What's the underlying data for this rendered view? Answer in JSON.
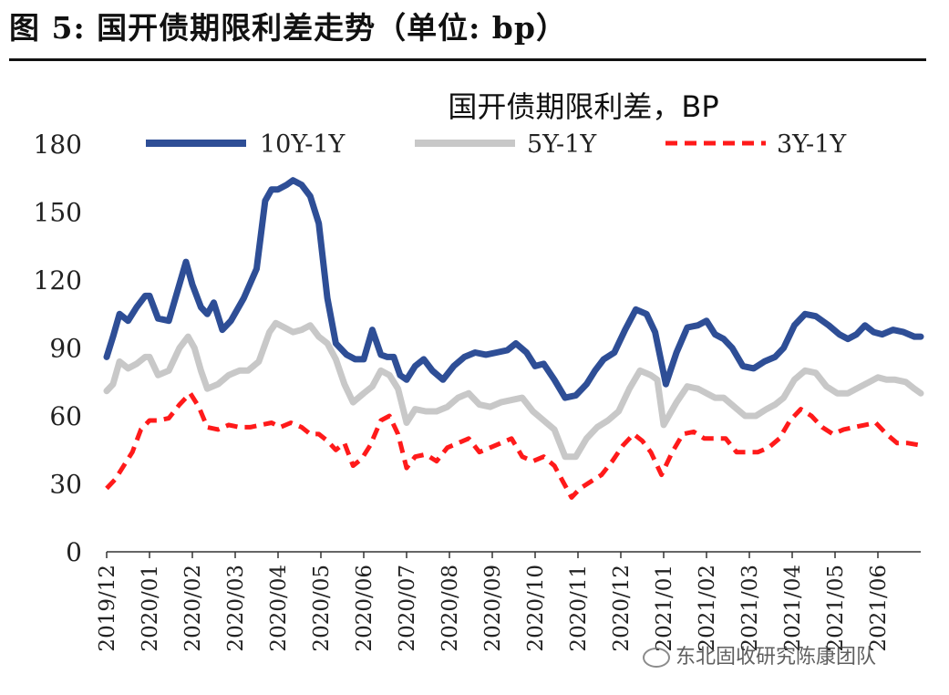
{
  "figure": {
    "title": "图 5: 国开债期限利差走势（单位: bp）",
    "watermark": "东北固收研究陈康团队"
  },
  "chart_data": {
    "type": "line",
    "title": "国开债期限利差，BP",
    "xlabel": "",
    "ylabel": "",
    "ylim": [
      0,
      180
    ],
    "yticks": [
      "0",
      "30",
      "60",
      "90",
      "120",
      "150",
      "180"
    ],
    "xticks": [
      "2019/12",
      "2020/01",
      "2020/02",
      "2020/03",
      "2020/04",
      "2020/05",
      "2020/06",
      "2020/07",
      "2020/08",
      "2020/09",
      "2020/10",
      "2020/11",
      "2020/12",
      "2021/01",
      "2021/02",
      "2021/03",
      "2021/04",
      "2021/05",
      "2021/06"
    ],
    "x_start": "2019/12",
    "x_end": "2021/06 late",
    "legend_position": "top",
    "series": [
      {
        "name": "10Y-1Y",
        "color": "#2e4e96",
        "style": "solid",
        "points": [
          [
            0,
            86
          ],
          [
            0.15,
            95
          ],
          [
            0.3,
            105
          ],
          [
            0.5,
            102
          ],
          [
            0.7,
            108
          ],
          [
            0.9,
            113
          ],
          [
            1.0,
            113
          ],
          [
            1.2,
            103
          ],
          [
            1.45,
            102
          ],
          [
            1.65,
            115
          ],
          [
            1.85,
            128
          ],
          [
            2.0,
            118
          ],
          [
            2.2,
            108
          ],
          [
            2.35,
            105
          ],
          [
            2.5,
            110
          ],
          [
            2.7,
            98
          ],
          [
            2.9,
            102
          ],
          [
            3.2,
            112
          ],
          [
            3.5,
            125
          ],
          [
            3.7,
            155
          ],
          [
            3.85,
            160
          ],
          [
            4.0,
            160
          ],
          [
            4.2,
            162
          ],
          [
            4.35,
            164
          ],
          [
            4.55,
            162
          ],
          [
            4.75,
            157
          ],
          [
            4.95,
            145
          ],
          [
            5.15,
            112
          ],
          [
            5.35,
            92
          ],
          [
            5.6,
            87
          ],
          [
            5.8,
            85
          ],
          [
            6.0,
            85
          ],
          [
            6.2,
            98
          ],
          [
            6.4,
            87
          ],
          [
            6.55,
            86
          ],
          [
            6.7,
            86
          ],
          [
            6.85,
            78
          ],
          [
            7.0,
            76
          ],
          [
            7.2,
            82
          ],
          [
            7.4,
            85
          ],
          [
            7.6,
            80
          ],
          [
            7.85,
            76
          ],
          [
            8.1,
            82
          ],
          [
            8.35,
            86
          ],
          [
            8.6,
            88
          ],
          [
            8.85,
            87
          ],
          [
            9.1,
            88
          ],
          [
            9.35,
            89
          ],
          [
            9.55,
            92
          ],
          [
            9.8,
            88
          ],
          [
            10.0,
            82
          ],
          [
            10.2,
            83
          ],
          [
            10.45,
            76
          ],
          [
            10.7,
            68
          ],
          [
            10.95,
            69
          ],
          [
            11.2,
            74
          ],
          [
            11.4,
            80
          ],
          [
            11.6,
            85
          ],
          [
            11.85,
            88
          ],
          [
            12.1,
            98
          ],
          [
            12.35,
            107
          ],
          [
            12.6,
            105
          ],
          [
            12.8,
            97
          ],
          [
            13.05,
            74
          ],
          [
            13.3,
            88
          ],
          [
            13.55,
            99
          ],
          [
            13.8,
            100
          ],
          [
            14.0,
            102
          ],
          [
            14.2,
            96
          ],
          [
            14.4,
            94
          ],
          [
            14.6,
            90
          ],
          [
            14.85,
            82
          ],
          [
            15.1,
            81
          ],
          [
            15.35,
            84
          ],
          [
            15.6,
            86
          ],
          [
            15.8,
            90
          ],
          [
            16.05,
            100
          ],
          [
            16.3,
            105
          ],
          [
            16.55,
            104
          ],
          [
            16.85,
            100
          ],
          [
            17.1,
            96
          ],
          [
            17.3,
            94
          ],
          [
            17.5,
            96
          ],
          [
            17.7,
            100
          ],
          [
            17.9,
            97
          ],
          [
            18.1,
            96
          ],
          [
            18.35,
            98
          ],
          [
            18.6,
            97
          ],
          [
            18.85,
            95
          ],
          [
            19.0,
            95
          ]
        ]
      },
      {
        "name": "5Y-1Y",
        "color": "#c8c8c8",
        "style": "solid",
        "points": [
          [
            0,
            71
          ],
          [
            0.15,
            74
          ],
          [
            0.3,
            84
          ],
          [
            0.5,
            81
          ],
          [
            0.7,
            83
          ],
          [
            0.9,
            86
          ],
          [
            1.0,
            86
          ],
          [
            1.2,
            78
          ],
          [
            1.45,
            80
          ],
          [
            1.7,
            90
          ],
          [
            1.9,
            95
          ],
          [
            2.05,
            90
          ],
          [
            2.2,
            80
          ],
          [
            2.35,
            72
          ],
          [
            2.6,
            74
          ],
          [
            2.85,
            78
          ],
          [
            3.1,
            80
          ],
          [
            3.3,
            80
          ],
          [
            3.55,
            84
          ],
          [
            3.8,
            97
          ],
          [
            3.95,
            101
          ],
          [
            4.15,
            99
          ],
          [
            4.35,
            97
          ],
          [
            4.55,
            98
          ],
          [
            4.75,
            100
          ],
          [
            4.95,
            95
          ],
          [
            5.15,
            92
          ],
          [
            5.35,
            85
          ],
          [
            5.55,
            74
          ],
          [
            5.75,
            66
          ],
          [
            6.0,
            70
          ],
          [
            6.2,
            73
          ],
          [
            6.4,
            80
          ],
          [
            6.6,
            78
          ],
          [
            6.8,
            72
          ],
          [
            7.0,
            57
          ],
          [
            7.2,
            63
          ],
          [
            7.45,
            62
          ],
          [
            7.7,
            62
          ],
          [
            7.95,
            64
          ],
          [
            8.2,
            68
          ],
          [
            8.45,
            70
          ],
          [
            8.7,
            65
          ],
          [
            8.95,
            64
          ],
          [
            9.2,
            66
          ],
          [
            9.45,
            67
          ],
          [
            9.7,
            68
          ],
          [
            9.95,
            62
          ],
          [
            10.2,
            58
          ],
          [
            10.45,
            54
          ],
          [
            10.7,
            42
          ],
          [
            10.95,
            42
          ],
          [
            11.2,
            50
          ],
          [
            11.45,
            55
          ],
          [
            11.7,
            58
          ],
          [
            11.95,
            62
          ],
          [
            12.2,
            72
          ],
          [
            12.45,
            80
          ],
          [
            12.7,
            78
          ],
          [
            12.85,
            76
          ],
          [
            13.0,
            56
          ],
          [
            13.3,
            66
          ],
          [
            13.55,
            73
          ],
          [
            13.8,
            72
          ],
          [
            14.0,
            70
          ],
          [
            14.2,
            68
          ],
          [
            14.4,
            68
          ],
          [
            14.65,
            64
          ],
          [
            14.9,
            60
          ],
          [
            15.15,
            60
          ],
          [
            15.4,
            63
          ],
          [
            15.6,
            65
          ],
          [
            15.8,
            68
          ],
          [
            16.05,
            76
          ],
          [
            16.3,
            80
          ],
          [
            16.55,
            79
          ],
          [
            16.8,
            73
          ],
          [
            17.05,
            70
          ],
          [
            17.3,
            70
          ],
          [
            17.5,
            72
          ],
          [
            17.8,
            75
          ],
          [
            18.0,
            77
          ],
          [
            18.2,
            76
          ],
          [
            18.4,
            76
          ],
          [
            18.65,
            75
          ],
          [
            18.85,
            72
          ],
          [
            19.0,
            70
          ]
        ]
      },
      {
        "name": "3Y-1Y",
        "color": "#ff1a1a",
        "style": "dashed",
        "points": [
          [
            0,
            28
          ],
          [
            0.2,
            32
          ],
          [
            0.4,
            38
          ],
          [
            0.6,
            44
          ],
          [
            0.8,
            54
          ],
          [
            1.0,
            58
          ],
          [
            1.2,
            58
          ],
          [
            1.45,
            59
          ],
          [
            1.7,
            65
          ],
          [
            1.95,
            70
          ],
          [
            2.15,
            64
          ],
          [
            2.35,
            55
          ],
          [
            2.6,
            54
          ],
          [
            2.85,
            56
          ],
          [
            3.1,
            55
          ],
          [
            3.35,
            55
          ],
          [
            3.6,
            56
          ],
          [
            3.85,
            57
          ],
          [
            4.05,
            55
          ],
          [
            4.3,
            57
          ],
          [
            4.55,
            55
          ],
          [
            4.75,
            52
          ],
          [
            4.95,
            52
          ],
          [
            5.15,
            49
          ],
          [
            5.35,
            45
          ],
          [
            5.55,
            48
          ],
          [
            5.75,
            38
          ],
          [
            5.95,
            41
          ],
          [
            6.15,
            47
          ],
          [
            6.4,
            58
          ],
          [
            6.6,
            60
          ],
          [
            6.8,
            52
          ],
          [
            7.0,
            37
          ],
          [
            7.2,
            42
          ],
          [
            7.45,
            43
          ],
          [
            7.7,
            40
          ],
          [
            7.95,
            46
          ],
          [
            8.2,
            48
          ],
          [
            8.45,
            50
          ],
          [
            8.7,
            44
          ],
          [
            8.95,
            46
          ],
          [
            9.2,
            48
          ],
          [
            9.45,
            50
          ],
          [
            9.7,
            42
          ],
          [
            9.95,
            40
          ],
          [
            10.2,
            42
          ],
          [
            10.45,
            38
          ],
          [
            10.65,
            31
          ],
          [
            10.85,
            24
          ],
          [
            11.05,
            28
          ],
          [
            11.3,
            31
          ],
          [
            11.55,
            34
          ],
          [
            11.8,
            40
          ],
          [
            12.05,
            47
          ],
          [
            12.3,
            52
          ],
          [
            12.5,
            49
          ],
          [
            12.7,
            44
          ],
          [
            12.95,
            34
          ],
          [
            13.2,
            44
          ],
          [
            13.45,
            52
          ],
          [
            13.7,
            53
          ],
          [
            13.95,
            50
          ],
          [
            14.2,
            50
          ],
          [
            14.45,
            50
          ],
          [
            14.7,
            44
          ],
          [
            14.95,
            44
          ],
          [
            15.2,
            44
          ],
          [
            15.45,
            46
          ],
          [
            15.7,
            50
          ],
          [
            15.95,
            58
          ],
          [
            16.2,
            63
          ],
          [
            16.45,
            60
          ],
          [
            16.7,
            55
          ],
          [
            16.95,
            52
          ],
          [
            17.2,
            54
          ],
          [
            17.45,
            55
          ],
          [
            17.7,
            56
          ],
          [
            17.95,
            57
          ],
          [
            18.2,
            52
          ],
          [
            18.45,
            48
          ],
          [
            18.7,
            48
          ],
          [
            19.0,
            47
          ]
        ]
      }
    ]
  }
}
